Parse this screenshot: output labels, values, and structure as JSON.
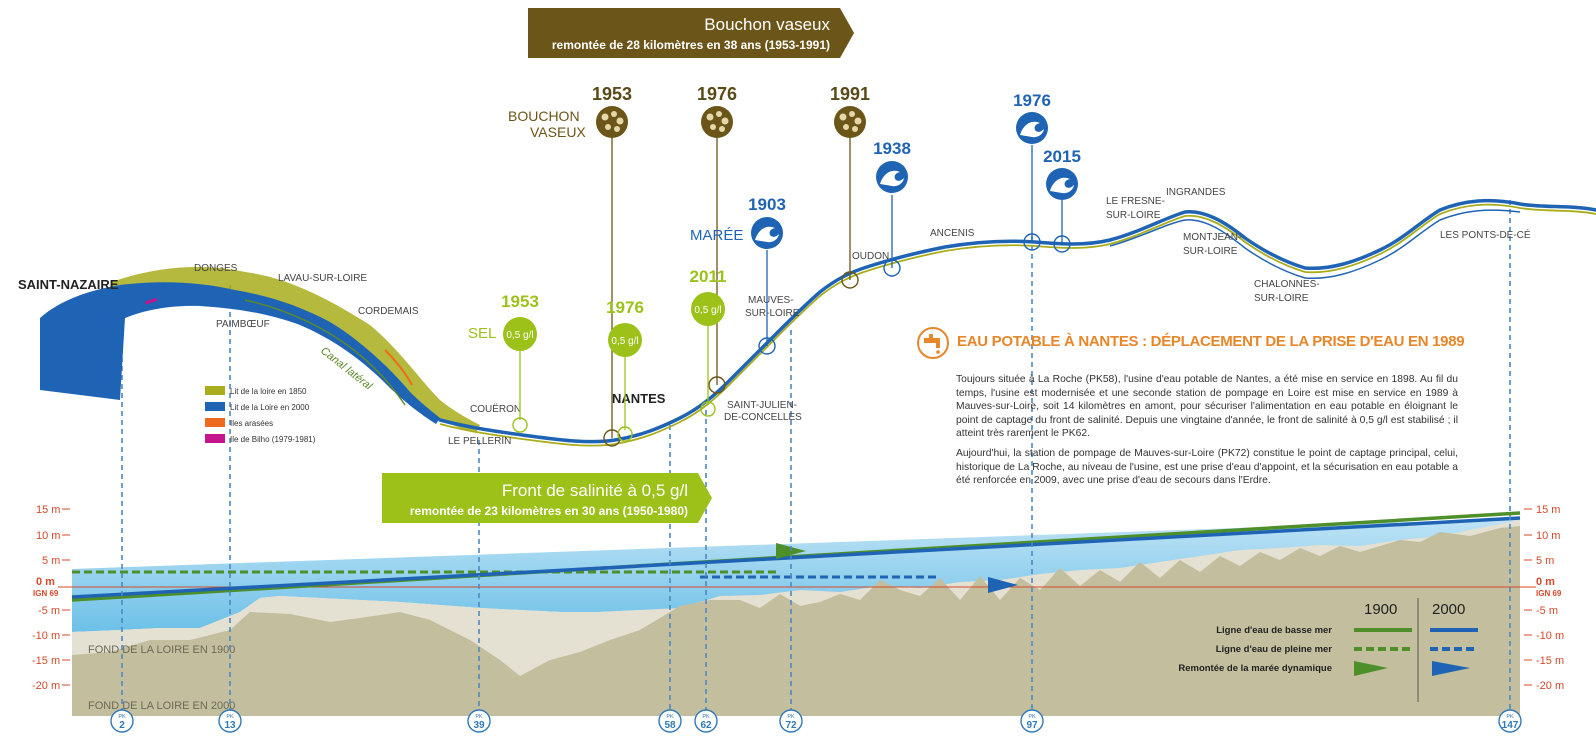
{
  "banners": {
    "bouchon_title": "Bouchon vaseux",
    "bouchon_sub": "remontée de 28 kilomètres en 38 ans (1953-1991)",
    "front_title": "Front de salinité à 0,5 g/l",
    "front_sub": "remontée de 23 kilomètres en 30 ans (1950-1980)"
  },
  "markers": {
    "bouchon_label_1": "BOUCHON",
    "bouchon_label_2": "VASEUX",
    "b1953": "1953",
    "b1976": "1976",
    "b1991": "1991",
    "sel_label": "SEL",
    "s1953": "1953",
    "s1976": "1976",
    "s2011": "2011",
    "sel_value": "0,5 g/l",
    "maree_label": "MARÉE",
    "m1903": "1903",
    "m1938": "1938",
    "m1976": "1976",
    "m2015": "2015"
  },
  "places": {
    "saint_nazaire": "SAINT-NAZAIRE",
    "donges": "DONGES",
    "lavau": "LAVAU-SUR-LOIRE",
    "paimboeuf": "PAIMBŒUF",
    "cordemais": "CORDEMAIS",
    "canal": "Canal latéral",
    "coueron": "COUËRON",
    "le_pellerin": "LE PELLERIN",
    "nantes": "NANTES",
    "st_julien_1": "SAINT-JULIEN-",
    "st_julien_2": "DE-CONCELLES",
    "mauves_1": "MAUVES-",
    "mauves_2": "SUR-LOIRE",
    "oudon": "OUDON",
    "ancenis": "ANCENIS",
    "fresne_1": "LE FRESNE-",
    "fresne_2": "SUR-LOIRE",
    "ingrandes": "INGRANDES",
    "montjean_1": "MONTJEAN-",
    "montjean_2": "SUR-LOIRE",
    "chalonnes_1": "CHALONNES-",
    "chalonnes_2": "SUR-LOIRE",
    "ponts_de_ce": "LES PONTS-DE-CÉ"
  },
  "map_legend": [
    {
      "label": "Lit de la loire en 1850",
      "color": "#a8ad1c"
    },
    {
      "label": "Lit de la Loire en 2000",
      "color": "#1f64b4"
    },
    {
      "label": "Iles arasées",
      "color": "#ee6a1e"
    },
    {
      "label": "Ile de Bilho (1979-1981)",
      "color": "#c4158c"
    }
  ],
  "info": {
    "title": "EAU POTABLE À NANTES : DÉPLACEMENT DE LA PRISE D'EAU EN 1989",
    "p1": "Toujours située à La Roche (PK58), l'usine d'eau potable de Nantes, a été mise en service en 1898. Au fil du temps, l'usine est modernisée et une seconde station de pompage en Loire est mise en service en 1989 à Mauves-sur-Loire, soit 14 kilomètres en amont, pour sécuriser l'alimentation en eau potable en éloignant le point de captage du front de salinité. Depuis une vingtaine d'année, le front de salinité à 0,5 g/l est stabilisé ; il atteint très rarement le PK62.",
    "p2": "Aujourd'hui, la station de pompage de Mauves-sur-Loire (PK72) constitue le point de captage principal, celui, historique de La Roche, au niveau de l'usine, est une prise d'eau d'appoint, et la sécurisation en eau potable a été renforcée en 2009, avec une prise d'eau de secours dans l'Erdre."
  },
  "axis": {
    "ticks": [
      "15 m",
      "10 m",
      "5 m",
      "0 m",
      "-5 m",
      "-10 m",
      "-15 m",
      "-20 m"
    ],
    "ign": "IGN 69"
  },
  "profile_labels": {
    "fond_1900": "FOND DE LA LOIRE EN 1900",
    "fond_2000": "FOND DE LA LOIRE EN 2000"
  },
  "profile_legend": {
    "col_1900": "1900",
    "col_2000": "2000",
    "row_basse": "Ligne d'eau de basse mer",
    "row_pleine": "Ligne d'eau de pleine mer",
    "row_maree": "Remontée de la marée dynamique"
  },
  "pk": [
    {
      "prefix": "PK",
      "value": "2"
    },
    {
      "prefix": "PK",
      "value": "13"
    },
    {
      "prefix": "PK",
      "value": "39"
    },
    {
      "prefix": "PK",
      "value": "58"
    },
    {
      "prefix": "PK",
      "value": "62"
    },
    {
      "prefix": "PK",
      "value": "72"
    },
    {
      "prefix": "PK",
      "value": "97"
    },
    {
      "prefix": "PK",
      "value": "147"
    }
  ],
  "colors": {
    "brown": "#6b5518",
    "green": "#9cc21a",
    "blue": "#1f64b4",
    "orange": "#e8862a",
    "dark_green": "#4f8f2a"
  }
}
